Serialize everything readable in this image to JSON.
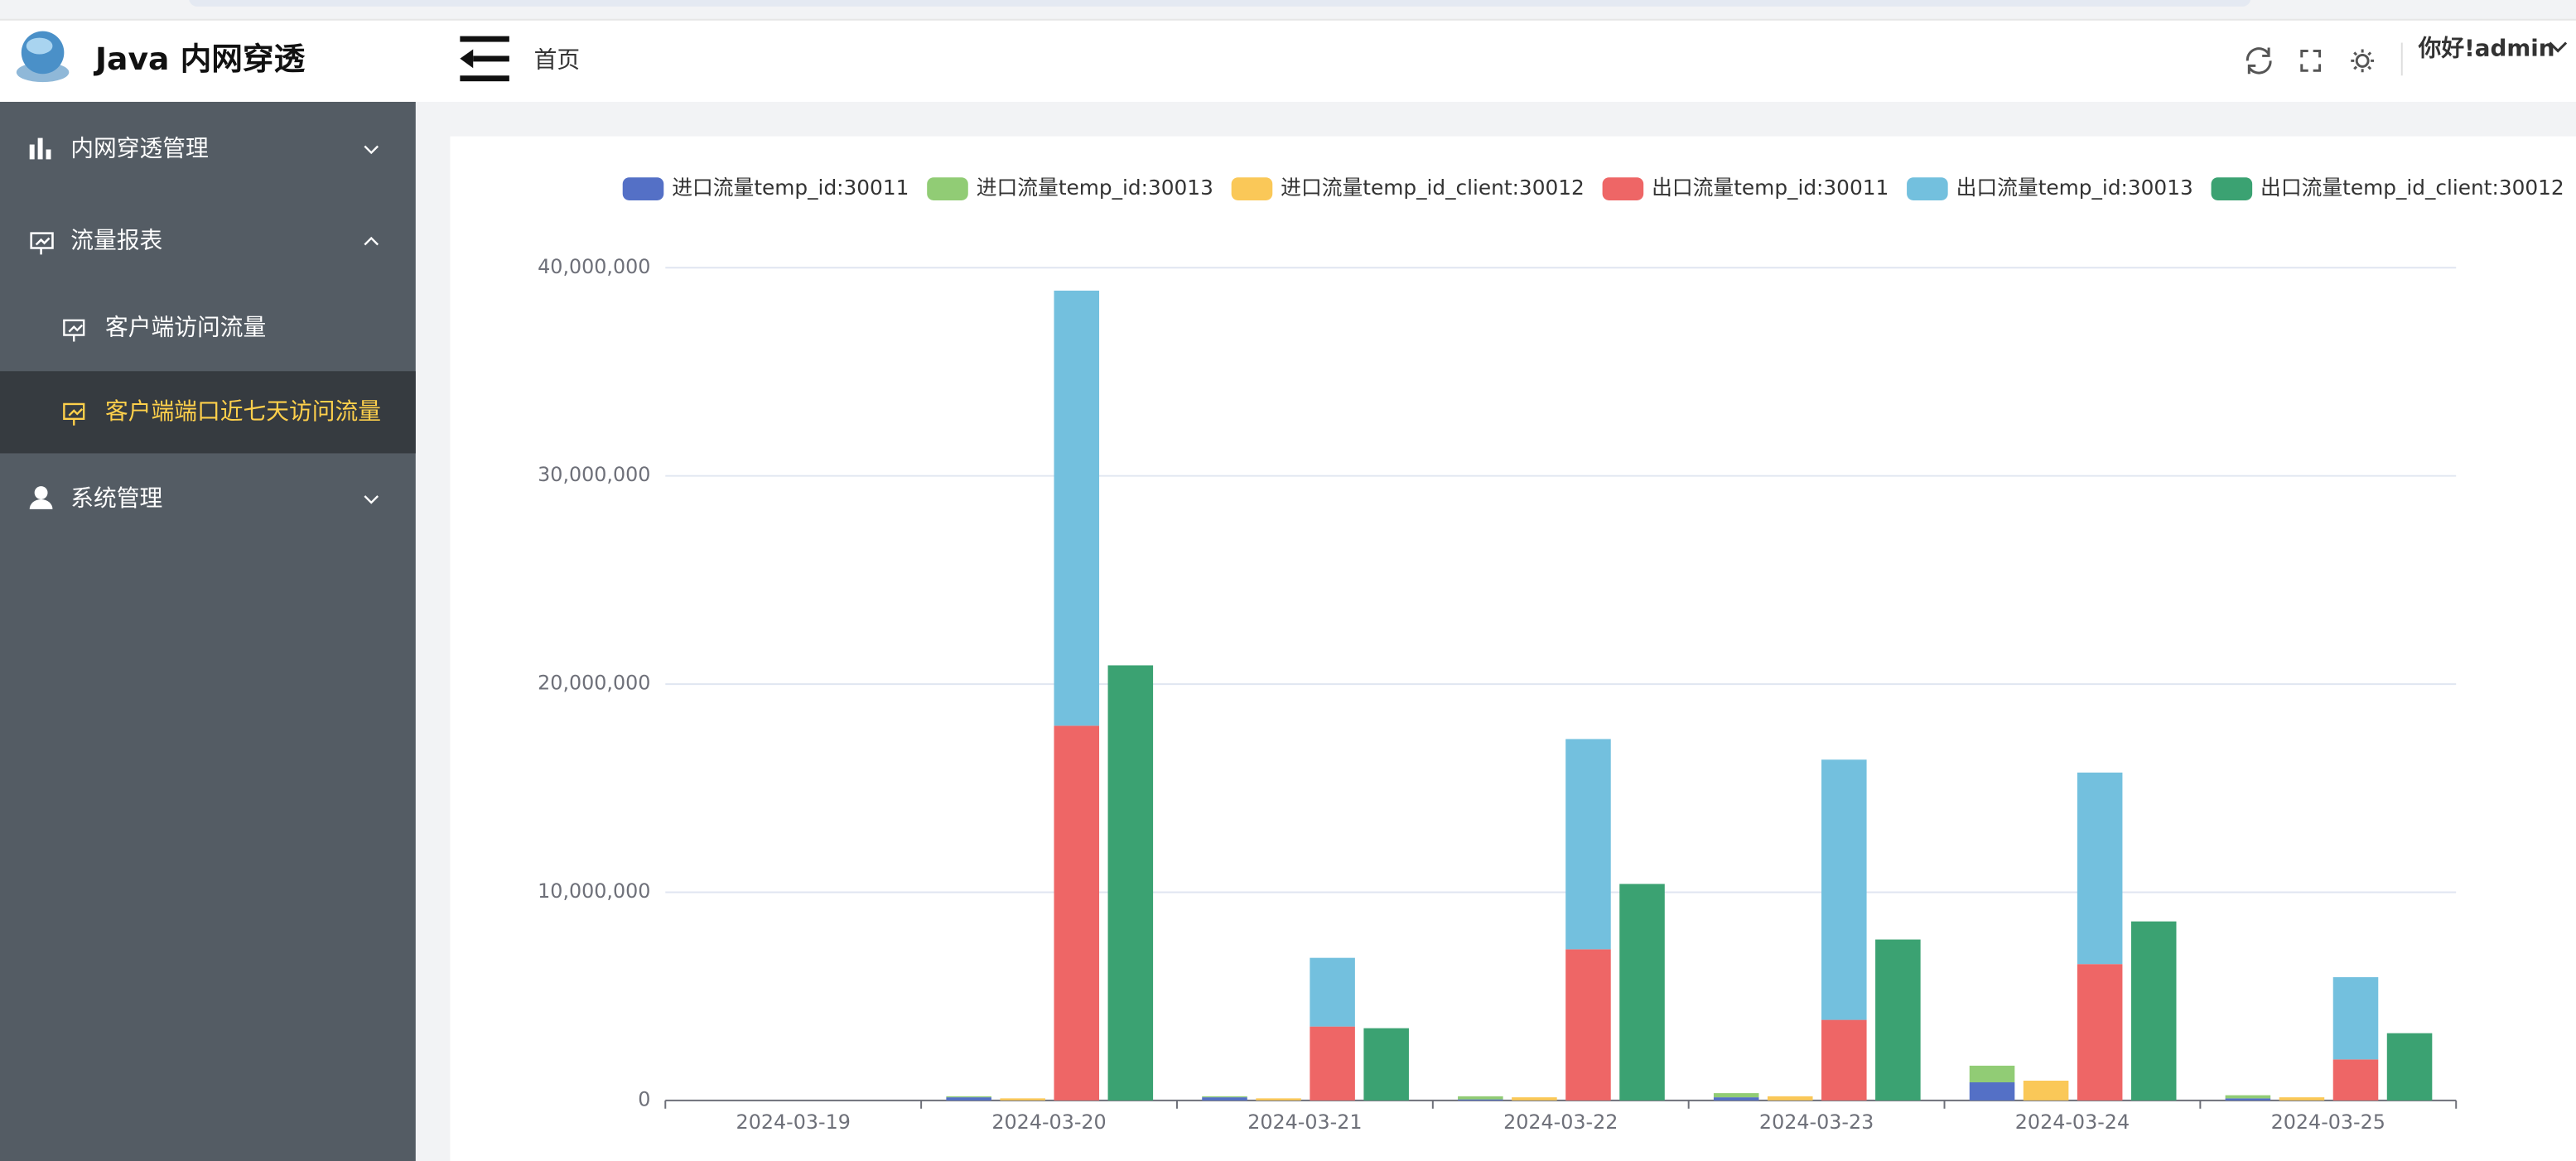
{
  "app": {
    "logo_text": "Java 内网穿透",
    "breadcrumb": "首页",
    "user": "你好!admin",
    "menu": [
      {
        "label": "内网穿透管理"
      },
      {
        "label": "流量报表",
        "children": [
          "客户端访问流量",
          "客户端端口近七天访问流量"
        ]
      },
      {
        "label": "系统管理"
      }
    ]
  },
  "chart_data": {
    "type": "bar",
    "categories": [
      "2024-03-19",
      "2024-03-20",
      "2024-03-21",
      "2024-03-22",
      "2024-03-23",
      "2024-03-24",
      "2024-03-25"
    ],
    "series": [
      {
        "name": "进口流量temp_id:30011",
        "color": "#5470c6",
        "stack": 0,
        "values": [
          0,
          150000,
          150000,
          50000,
          150000,
          870000,
          100000
        ]
      },
      {
        "name": "进口流量temp_id:30013",
        "color": "#91cc75",
        "stack": 0,
        "values": [
          0,
          50000,
          50000,
          150000,
          200000,
          800000,
          150000
        ]
      },
      {
        "name": "进口流量temp_id_client:30012",
        "color": "#fac858",
        "stack": 1,
        "values": [
          0,
          100000,
          100000,
          150000,
          200000,
          950000,
          150000
        ]
      },
      {
        "name": "出口流量temp_id:30011",
        "color": "#ee6666",
        "stack": 2,
        "values": [
          0,
          18000000,
          3550000,
          7260000,
          3870000,
          6550000,
          1970000
        ]
      },
      {
        "name": "出口流量temp_id:30013",
        "color": "#73c0de",
        "stack": 2,
        "values": [
          0,
          20900000,
          3300000,
          10100000,
          12500000,
          9200000,
          3950000
        ]
      },
      {
        "name": "出口流量temp_id_client:30012",
        "color": "#3ba272",
        "stack": 3,
        "values": [
          0,
          20900000,
          3470000,
          10400000,
          7730000,
          8600000,
          3230000
        ]
      }
    ],
    "ylim": [
      0,
      40000000
    ],
    "yticks": [
      0,
      {
        "value": 10000000,
        "label": "10,000,000"
      },
      {
        "value": 20000000,
        "label": "20,000,000"
      },
      {
        "value": 30000000,
        "label": "30,000,000"
      },
      {
        "value": 40000000,
        "label": "40,000,000"
      }
    ],
    "grid": true
  }
}
